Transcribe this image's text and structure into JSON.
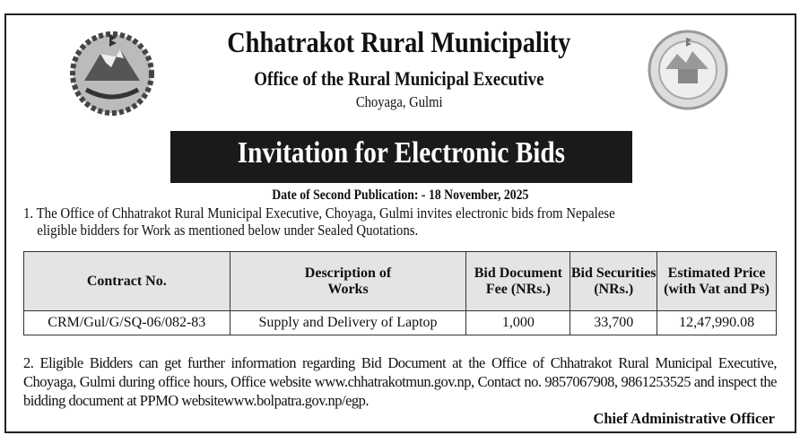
{
  "header": {
    "title": "Chhatrakot Rural Municipality",
    "office": "Office of the Rural Municipal Executive",
    "location": "Choyaga, Gulmi",
    "left_logo": "nepal-government-emblem",
    "right_logo": "chhatrakot-rural-municipality-seal"
  },
  "banner": "Invitation for Electronic Bids",
  "publication_date": "Date of Second Publication: - 18 November, 2025",
  "para1": {
    "line1": "1. The Office of Chhatrakot Rural Municipal Executive, Choyaga, Gulmi invites electronic bids from Nepalese",
    "line2": "eligible bidders for Work as mentioned below under Sealed Quotations."
  },
  "table": {
    "headers": [
      "Contract No.",
      "Description of Works",
      "Bid Document Fee (NRs.)",
      "Bid Securities (NRs.)",
      "Estimated Price (with Vat and Ps)"
    ],
    "rows": [
      [
        "CRM/Gul/G/SQ-06/082-83",
        "Supply and Delivery of Laptop",
        "1,000",
        "33,700",
        "12,47,990.08"
      ]
    ]
  },
  "para2": "2. Eligible Bidders can get further information regarding Bid Document at the Office of Chhatrakot Rural Municipal Executive, Choyaga, Gulmi during office hours, Office website www.chhatrakotmun.gov.np, Contact no. 9857067908, 9861253525 and inspect the bidding document at PPMO websitewww.bolpatra.gov.np/egp.",
  "signature": "Chief Administrative Officer"
}
